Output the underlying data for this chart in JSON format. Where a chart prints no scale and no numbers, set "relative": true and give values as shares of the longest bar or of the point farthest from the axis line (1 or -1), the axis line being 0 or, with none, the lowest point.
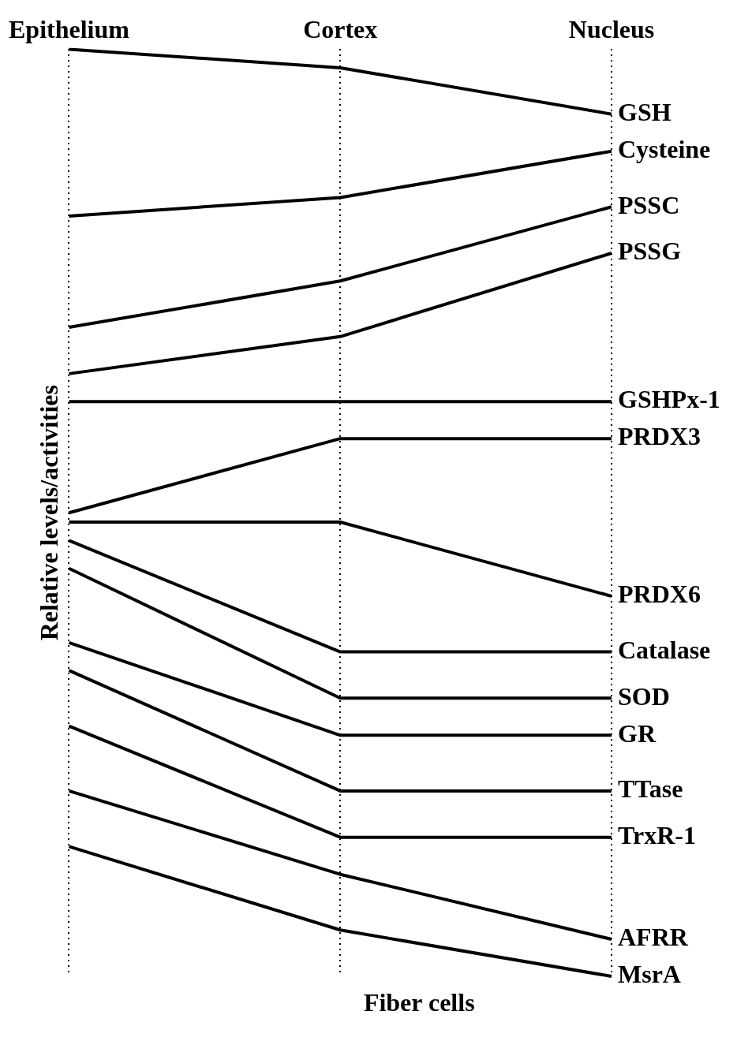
{
  "chart_data": {
    "type": "line",
    "relative": true,
    "xlabel": "Fiber cells",
    "ylabel": "Relative levels/activities",
    "categories": [
      "Epithelium",
      "Cortex",
      "Nucleus"
    ],
    "grid": "x",
    "legend": false,
    "marker": "none",
    "line_style": "solid",
    "series": [
      {
        "name": "GSH",
        "color": "#000000",
        "values": [
          1,
          0.98,
          0.93
        ]
      },
      {
        "name": "Cysteine",
        "color": "#000000",
        "values": [
          0.82,
          0.84,
          0.89
        ]
      },
      {
        "name": "PSSC",
        "color": "#000000",
        "values": [
          0.7,
          0.75,
          0.83
        ]
      },
      {
        "name": "PSSG",
        "color": "#000000",
        "values": [
          0.65,
          0.69,
          0.78
        ]
      },
      {
        "name": "GSHPx-1",
        "color": "#000000",
        "values": [
          0.62,
          0.62,
          0.62
        ]
      },
      {
        "name": "PRDX3",
        "color": "#000000",
        "values": [
          0.5,
          0.58,
          0.58
        ]
      },
      {
        "name": "PRDX6",
        "color": "#000000",
        "values": [
          0.49,
          0.49,
          0.41
        ]
      },
      {
        "name": "Catalase",
        "color": "#000000",
        "values": [
          0.47,
          0.35,
          0.35
        ]
      },
      {
        "name": "SOD",
        "color": "#000000",
        "values": [
          0.44,
          0.3,
          0.3
        ]
      },
      {
        "name": "GR",
        "color": "#000000",
        "values": [
          0.36,
          0.26,
          0.26
        ]
      },
      {
        "name": "TTase",
        "color": "#000000",
        "values": [
          0.33,
          0.2,
          0.2
        ]
      },
      {
        "name": "TrxR-1",
        "color": "#000000",
        "values": [
          0.27,
          0.15,
          0.15
        ]
      },
      {
        "name": "AFRR",
        "color": "#000000",
        "values": [
          0.2,
          0.11,
          0.04
        ]
      },
      {
        "name": "MsrA",
        "color": "#000000",
        "values": [
          0.14,
          0.05,
          0
        ]
      }
    ]
  }
}
